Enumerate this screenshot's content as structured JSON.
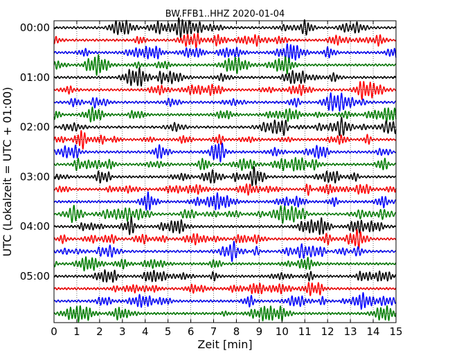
{
  "chart_data": {
    "type": "line",
    "title": "BW.FFB1..HHZ 2020-01-04",
    "xlabel": "Zeit  [min]",
    "ylabel": "UTC (Lokalzeit = UTC + 01:00)",
    "xlim": [
      0,
      15
    ],
    "x_ticks": [
      "0",
      "1",
      "2",
      "3",
      "4",
      "5",
      "6",
      "7",
      "8",
      "9",
      "10",
      "11",
      "12",
      "13",
      "14",
      "15"
    ],
    "y_ticks": [
      "00:00",
      "01:00",
      "02:00",
      "03:00",
      "04:00",
      "05:00"
    ],
    "rows": 24,
    "row_interval_min": 15,
    "grid": true,
    "colors": [
      "#000000",
      "#ff0000",
      "#0000ff",
      "#008000"
    ]
  }
}
